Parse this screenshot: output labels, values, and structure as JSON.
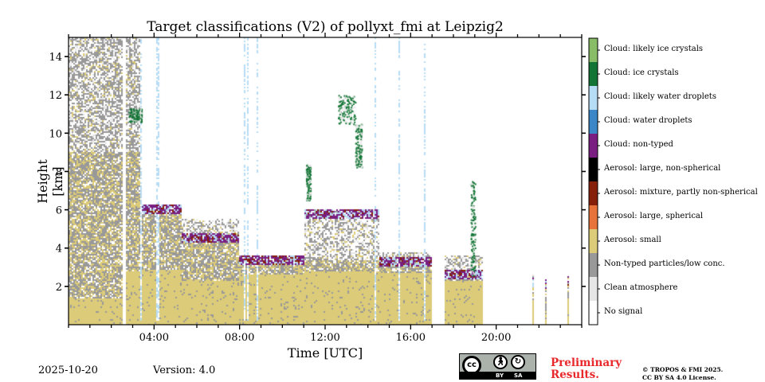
{
  "chart_data": {
    "type": "heatmap",
    "title": "Target classifications (V2) of pollyxt_fmi at Leipzig2",
    "xlabel": "Time [UTC]",
    "ylabel": "Height [km]",
    "xlim_hours": [
      0,
      24
    ],
    "ylim_km": [
      0,
      15
    ],
    "x_major_ticks": [
      {
        "hour": 4,
        "label": "04:00"
      },
      {
        "hour": 8,
        "label": "08:00"
      },
      {
        "hour": 12,
        "label": "12:00"
      },
      {
        "hour": 16,
        "label": "16:00"
      },
      {
        "hour": 20,
        "label": "20:00"
      }
    ],
    "x_minor_tick_step_hours": 1,
    "y_ticks": [
      {
        "value": 2,
        "label": "2"
      },
      {
        "value": 4,
        "label": "4"
      },
      {
        "value": 6,
        "label": "6"
      },
      {
        "value": 8,
        "label": "8"
      },
      {
        "value": 10,
        "label": "10"
      },
      {
        "value": 12,
        "label": "12"
      },
      {
        "value": 14,
        "label": "14"
      }
    ],
    "classes": [
      {
        "id": 0,
        "label": "No signal",
        "color": "#ffffff"
      },
      {
        "id": 1,
        "label": "Clean atmosphere",
        "color": "#e6e6e6"
      },
      {
        "id": 2,
        "label": "Non-typed particles/low conc.",
        "color": "#999999"
      },
      {
        "id": 3,
        "label": "Aerosol: small",
        "color": "#dccb78"
      },
      {
        "id": 4,
        "label": "Aerosol: large, spherical",
        "color": "#e8733a"
      },
      {
        "id": 5,
        "label": "Aerosol: mixture, partly non-spherical",
        "color": "#87200a"
      },
      {
        "id": 6,
        "label": "Aerosol: large, non-spherical",
        "color": "#000000"
      },
      {
        "id": 7,
        "label": "Cloud: non-typed",
        "color": "#7a1e82"
      },
      {
        "id": 8,
        "label": "Cloud: water droplets",
        "color": "#3b87c8"
      },
      {
        "id": 9,
        "label": "Cloud: likely water droplets",
        "color": "#b7dcf5"
      },
      {
        "id": 10,
        "label": "Cloud: ice crystals",
        "color": "#137535"
      },
      {
        "id": 11,
        "label": "Cloud: likely ice crystals",
        "color": "#88bc67"
      }
    ],
    "profiles": [
      {
        "t0": 0.0,
        "t1": 2.5,
        "small_top_km": 1.4,
        "mixed_top_km": 9.0,
        "sparse_top_km": 15.0,
        "cloud_base_km": null
      },
      {
        "t0": 2.5,
        "t1": 2.7,
        "small_top_km": 0,
        "mixed_top_km": 0,
        "sparse_top_km": 0,
        "cloud_base_km": null
      },
      {
        "t0": 2.7,
        "t1": 3.4,
        "small_top_km": 2.8,
        "mixed_top_km": 9.0,
        "sparse_top_km": 15.0,
        "cloud_base_km": null
      },
      {
        "t0": 3.4,
        "t1": 5.3,
        "small_top_km": 2.9,
        "mixed_top_km": 5.9,
        "sparse_top_km": 6.0,
        "cloud_base_km": 6.0
      },
      {
        "t0": 5.3,
        "t1": 8.0,
        "small_top_km": 2.3,
        "mixed_top_km": 4.8,
        "sparse_top_km": 5.5,
        "cloud_base_km": 4.5
      },
      {
        "t0": 8.0,
        "t1": 11.0,
        "small_top_km": 2.6,
        "mixed_top_km": 3.2,
        "sparse_top_km": 3.6,
        "cloud_base_km": 3.4
      },
      {
        "t0": 11.0,
        "t1": 14.5,
        "small_top_km": 2.8,
        "mixed_top_km": 3.4,
        "sparse_top_km": 6.0,
        "cloud_base_km": 5.8
      },
      {
        "t0": 14.5,
        "t1": 17.0,
        "small_top_km": 2.7,
        "mixed_top_km": 3.4,
        "sparse_top_km": 3.8,
        "cloud_base_km": 3.3
      },
      {
        "t0": 17.6,
        "t1": 19.4,
        "small_top_km": 2.3,
        "mixed_top_km": 2.6,
        "sparse_top_km": 3.6,
        "cloud_base_km": 2.6
      },
      {
        "t0": 21.7,
        "t1": 21.8,
        "small_top_km": 1.4,
        "mixed_top_km": 2.2,
        "sparse_top_km": 2.6,
        "cloud_base_km": 2.2
      },
      {
        "t0": 22.3,
        "t1": 22.35,
        "small_top_km": 0.5,
        "mixed_top_km": 2.2,
        "sparse_top_km": 2.2,
        "cloud_base_km": 2.1
      },
      {
        "t0": 23.3,
        "t1": 23.4,
        "small_top_km": 1.4,
        "mixed_top_km": 2.3,
        "sparse_top_km": 2.5,
        "cloud_base_km": 2.3
      }
    ],
    "ice_cloud_patches": [
      {
        "t0": 2.8,
        "t1": 3.4,
        "h0_km": 10.6,
        "h1_km": 11.3
      },
      {
        "t0": 11.1,
        "t1": 11.3,
        "h0_km": 6.5,
        "h1_km": 8.4
      },
      {
        "t0": 12.6,
        "t1": 13.4,
        "h0_km": 10.5,
        "h1_km": 12.0
      },
      {
        "t0": 13.4,
        "t1": 13.7,
        "h0_km": 8.2,
        "h1_km": 10.5
      },
      {
        "t0": 18.8,
        "t1": 19.0,
        "h0_km": 2.5,
        "h1_km": 7.5
      }
    ]
  },
  "footer": {
    "date": "2025-10-20",
    "version": "Version: 4.0",
    "license_badge": {
      "cc": "cc",
      "by": "BY",
      "sa": "SA"
    },
    "preliminary_line1": "Preliminary",
    "preliminary_line2": "Results.",
    "copyright_line1": "© TROPOS & FMI 2025.",
    "copyright_line2": "CC BY SA 4.0 License."
  }
}
